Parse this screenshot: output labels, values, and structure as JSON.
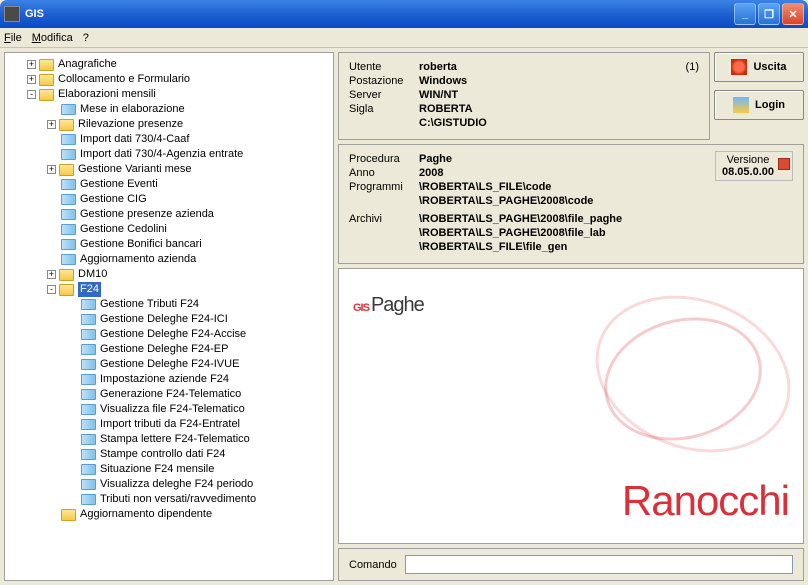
{
  "window": {
    "title": "GIS"
  },
  "menu": {
    "file": "File",
    "modifica": "Modifica",
    "help": "?"
  },
  "tree": [
    {
      "lvl": 1,
      "exp": "+",
      "icon": "fold",
      "label": "Anagrafiche"
    },
    {
      "lvl": 1,
      "exp": "+",
      "icon": "fold",
      "label": "Collocamento e Formulario"
    },
    {
      "lvl": 1,
      "exp": "-",
      "icon": "fold",
      "label": "Elaborazioni mensili"
    },
    {
      "lvl": 2,
      "exp": "",
      "icon": "leaf",
      "label": "Mese in elaborazione"
    },
    {
      "lvl": 2,
      "exp": "+",
      "icon": "fold",
      "label": "Rilevazione presenze"
    },
    {
      "lvl": 2,
      "exp": "",
      "icon": "leaf",
      "label": "Import dati 730/4-Caaf"
    },
    {
      "lvl": 2,
      "exp": "",
      "icon": "leaf",
      "label": "Import dati 730/4-Agenzia entrate"
    },
    {
      "lvl": 2,
      "exp": "+",
      "icon": "fold",
      "label": "Gestione Varianti mese"
    },
    {
      "lvl": 2,
      "exp": "",
      "icon": "leaf",
      "label": "Gestione Eventi"
    },
    {
      "lvl": 2,
      "exp": "",
      "icon": "leaf",
      "label": "Gestione CIG"
    },
    {
      "lvl": 2,
      "exp": "",
      "icon": "leaf",
      "label": "Gestione presenze azienda"
    },
    {
      "lvl": 2,
      "exp": "",
      "icon": "leaf",
      "label": "Gestione Cedolini"
    },
    {
      "lvl": 2,
      "exp": "",
      "icon": "leaf",
      "label": "Gestione Bonifici bancari"
    },
    {
      "lvl": 2,
      "exp": "",
      "icon": "leaf",
      "label": "Aggiornamento azienda"
    },
    {
      "lvl": 2,
      "exp": "+",
      "icon": "fold",
      "label": "DM10"
    },
    {
      "lvl": 2,
      "exp": "-",
      "icon": "fold",
      "label": "F24",
      "sel": true
    },
    {
      "lvl": 3,
      "exp": "",
      "icon": "leaf",
      "label": "Gestione Tributi F24"
    },
    {
      "lvl": 3,
      "exp": "",
      "icon": "leaf",
      "label": "Gestione Deleghe F24-ICI"
    },
    {
      "lvl": 3,
      "exp": "",
      "icon": "leaf",
      "label": "Gestione Deleghe F24-Accise"
    },
    {
      "lvl": 3,
      "exp": "",
      "icon": "leaf",
      "label": "Gestione Deleghe F24-EP"
    },
    {
      "lvl": 3,
      "exp": "",
      "icon": "leaf",
      "label": "Gestione Deleghe F24-IVUE"
    },
    {
      "lvl": 3,
      "exp": "",
      "icon": "leaf",
      "label": "Impostazione aziende F24"
    },
    {
      "lvl": 3,
      "exp": "",
      "icon": "leaf",
      "label": "Generazione F24-Telematico"
    },
    {
      "lvl": 3,
      "exp": "",
      "icon": "leaf",
      "label": "Visualizza file F24-Telematico"
    },
    {
      "lvl": 3,
      "exp": "",
      "icon": "leaf",
      "label": "Import tributi da F24-Entratel"
    },
    {
      "lvl": 3,
      "exp": "",
      "icon": "leaf",
      "label": "Stampa lettere F24-Telematico"
    },
    {
      "lvl": 3,
      "exp": "",
      "icon": "leaf",
      "label": "Stampe controllo dati F24"
    },
    {
      "lvl": 3,
      "exp": "",
      "icon": "leaf",
      "label": "Situazione F24 mensile"
    },
    {
      "lvl": 3,
      "exp": "",
      "icon": "leaf",
      "label": "Visualizza deleghe F24 periodo"
    },
    {
      "lvl": 3,
      "exp": "",
      "icon": "leaf",
      "label": "Tributi non versati/ravvedimento"
    },
    {
      "lvl": 2,
      "exp": "",
      "icon": "fold",
      "label": "Aggiornamento dipendente"
    }
  ],
  "info1": {
    "utente_k": "Utente",
    "utente_v": "roberta",
    "utente_r": "(1)",
    "post_k": "Postazione",
    "post_v": "Windows",
    "server_k": "Server",
    "server_v": "WIN/NT",
    "sigla_k": "Sigla",
    "sigla_v": "ROBERTA",
    "path": "C:\\GISTUDIO"
  },
  "info2": {
    "proc_k": "Procedura",
    "proc_v": "Paghe",
    "anno_k": "Anno",
    "anno_v": "2008",
    "prog_k": "Programmi",
    "prog_v1": "\\ROBERTA\\LS_FILE\\code",
    "prog_v2": "\\ROBERTA\\LS_PAGHE\\2008\\code",
    "arch_k": "Archivi",
    "arch_v1": "\\ROBERTA\\LS_PAGHE\\2008\\file_paghe",
    "arch_v2": "\\ROBERTA\\LS_PAGHE\\2008\\file_lab",
    "arch_v3": "\\ROBERTA\\LS_FILE\\file_gen",
    "ver_k": "Versione",
    "ver_v": "08.05.0.00"
  },
  "buttons": {
    "uscita": "Uscita",
    "login": "Login"
  },
  "logo": {
    "gis": "GIS",
    "paghe": "Paghe",
    "brand": "Ranocchi"
  },
  "cmd": {
    "label": "Comando",
    "value": ""
  }
}
